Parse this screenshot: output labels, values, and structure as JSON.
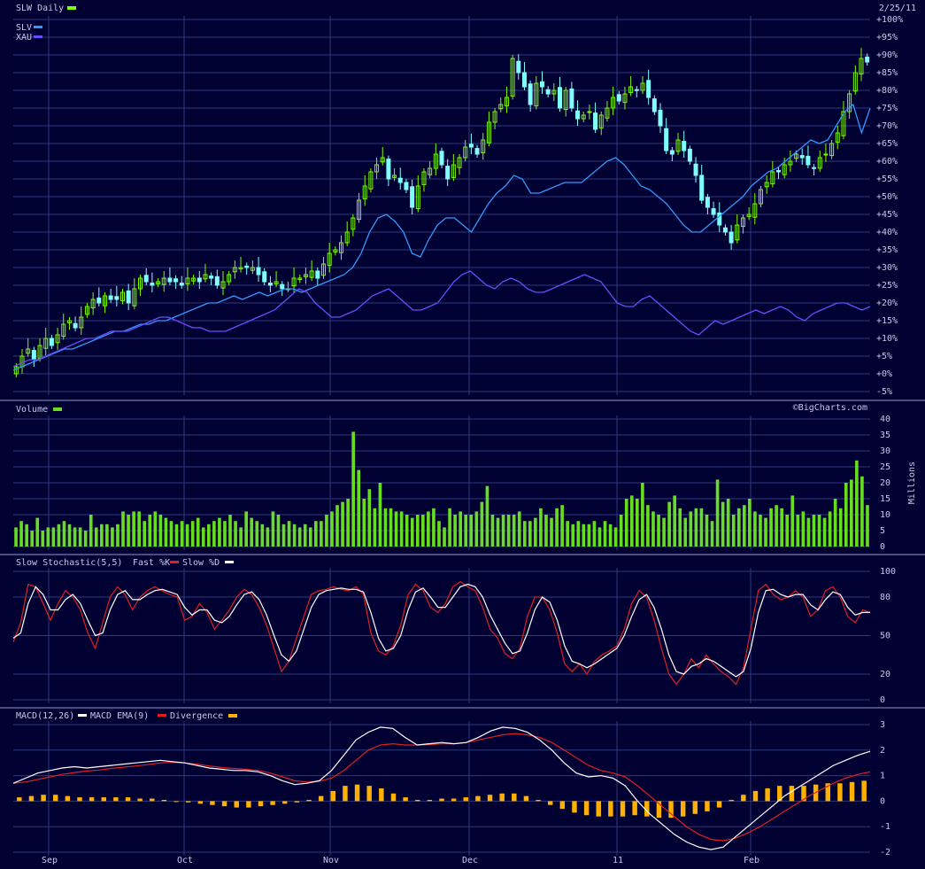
{
  "header": {
    "date": "2/25/11",
    "watermark": "©BigCharts.com"
  },
  "colors": {
    "background": "#000033",
    "grid": "#2e3a7a",
    "up_candle": "#7cfc00",
    "down_candle": "#80ffff",
    "slv": "#3399ff",
    "xau": "#6a4cff",
    "volume": "#66dd22",
    "fast_k": "#e02020",
    "slow_d": "#ffffff",
    "macd": "#ffffff",
    "macd_ema": "#e02020",
    "divergence": "#ffb000"
  },
  "chart_data": [
    {
      "panel": "price",
      "type": "candlestick",
      "legend": [
        {
          "name": "SLW Daily",
          "color": "#7cfc00"
        },
        {
          "name": "SLV",
          "color": "#3399ff"
        },
        {
          "name": "XAU",
          "color": "#6a4cff"
        }
      ],
      "y_unit": "percent",
      "ylim": [
        -5,
        100
      ],
      "y_ticks": [
        "+100%",
        "+95%",
        "+90%",
        "+85%",
        "+80%",
        "+75%",
        "+70%",
        "+65%",
        "+60%",
        "+55%",
        "+50%",
        "+45%",
        "+40%",
        "+35%",
        "+30%",
        "+25%",
        "+20%",
        "+15%",
        "+10%",
        "+5%",
        "+0%",
        "-5%"
      ],
      "x_ticks": [
        "Sep",
        "Oct",
        "Nov",
        "Dec",
        "11",
        "Feb"
      ],
      "slw_close_pct": [
        2,
        5,
        7,
        4,
        8,
        10,
        8,
        11,
        14,
        15,
        13,
        16,
        19,
        21,
        20,
        22,
        21,
        21,
        23,
        20,
        24,
        27,
        26,
        25,
        26,
        27,
        26,
        26,
        25,
        27,
        27,
        26,
        28,
        27,
        25,
        26,
        28,
        30,
        30,
        30,
        30,
        28,
        26,
        25,
        26,
        24,
        24,
        27,
        27,
        28,
        29,
        27,
        31,
        34,
        35,
        37,
        40,
        44,
        49,
        53,
        57,
        59,
        61,
        55,
        56,
        54,
        52,
        47,
        53,
        57,
        58,
        62,
        59,
        55,
        59,
        61,
        64,
        64,
        62,
        66,
        71,
        74,
        76,
        78,
        89,
        85,
        81,
        76,
        82,
        81,
        79,
        80,
        75,
        80,
        75,
        72,
        73,
        74,
        69,
        73,
        75,
        78,
        77,
        79,
        81,
        80,
        82,
        78,
        74,
        70,
        63,
        62,
        66,
        63,
        60,
        56,
        49,
        47,
        45,
        42,
        40,
        37,
        42,
        44,
        45,
        48,
        52,
        54,
        57,
        57,
        59,
        60,
        62,
        61,
        59,
        58,
        61,
        62,
        65,
        68,
        74,
        79,
        85,
        89,
        88
      ],
      "slv_pct": [
        1,
        2,
        3,
        4,
        5,
        6,
        7,
        7,
        8,
        9,
        10,
        11,
        12,
        12,
        13,
        14,
        14,
        15,
        15,
        16,
        17,
        18,
        19,
        20,
        20,
        21,
        22,
        21,
        22,
        23,
        22,
        23,
        24,
        24,
        23,
        24,
        25,
        26,
        27,
        28,
        30,
        34,
        40,
        44,
        45,
        43,
        40,
        34,
        33,
        38,
        42,
        44,
        44,
        42,
        40,
        44,
        48,
        51,
        53,
        56,
        55,
        51,
        51,
        52,
        53,
        54,
        54,
        54,
        56,
        58,
        60,
        61,
        59,
        56,
        53,
        52,
        50,
        48,
        45,
        42,
        40,
        40,
        42,
        44,
        46,
        48,
        50,
        53,
        55,
        57,
        58,
        60,
        62,
        64,
        66,
        65,
        66,
        70,
        74,
        76,
        68,
        75
      ],
      "xau_pct": [
        2,
        3,
        4,
        4,
        5,
        6,
        7,
        8,
        9,
        10,
        10,
        11,
        12,
        12,
        12,
        13,
        14,
        15,
        16,
        16,
        15,
        14,
        13,
        13,
        12,
        12,
        12,
        13,
        14,
        15,
        16,
        17,
        18,
        20,
        22,
        24,
        23,
        20,
        18,
        16,
        16,
        17,
        18,
        20,
        22,
        23,
        24,
        22,
        20,
        18,
        18,
        19,
        20,
        23,
        26,
        28,
        29,
        27,
        25,
        24,
        26,
        27,
        26,
        24,
        23,
        23,
        24,
        25,
        26,
        27,
        28,
        27,
        26,
        23,
        20,
        19,
        19,
        21,
        22,
        20,
        18,
        16,
        14,
        12,
        11,
        13,
        15,
        14,
        15,
        16,
        17,
        18,
        17,
        18,
        19,
        18,
        16,
        15,
        17,
        18,
        19,
        20,
        20,
        19,
        18,
        19
      ],
      "slv_label": "SLV",
      "xau_label": "XAU"
    },
    {
      "panel": "volume",
      "type": "bar",
      "legend": [
        {
          "name": "Volume",
          "color": "#66dd22"
        }
      ],
      "ylabel": "Millions",
      "ylim": [
        0,
        40
      ],
      "y_ticks": [
        "40",
        "35",
        "30",
        "25",
        "20",
        "15",
        "10",
        "5",
        "0"
      ],
      "values": [
        6,
        8,
        7,
        5,
        9,
        5,
        6,
        6,
        7,
        8,
        7,
        6,
        6,
        5,
        10,
        6,
        7,
        7,
        6,
        7,
        11,
        10,
        11,
        11,
        8,
        10,
        11,
        10,
        9,
        8,
        7,
        8,
        7,
        8,
        9,
        6,
        7,
        8,
        9,
        8,
        10,
        8,
        6,
        11,
        9,
        8,
        7,
        6,
        11,
        10,
        7,
        8,
        7,
        6,
        7,
        6,
        8,
        8,
        10,
        11,
        13,
        14,
        15,
        36,
        24,
        15,
        18,
        12,
        20,
        12,
        12,
        11,
        11,
        10,
        9,
        10,
        10,
        11,
        12,
        8,
        6,
        12,
        10,
        11,
        10,
        10,
        11,
        14,
        19,
        10,
        9,
        10,
        10,
        10,
        11,
        8,
        8,
        9,
        12,
        10,
        9,
        12,
        13,
        8,
        7,
        8,
        7,
        7,
        8,
        6,
        8,
        7,
        6,
        10,
        15,
        16,
        15,
        20,
        13,
        11,
        10,
        9,
        14,
        16,
        12,
        9,
        11,
        12,
        12,
        10,
        8,
        21,
        14,
        15,
        10,
        12,
        13,
        15,
        11,
        10,
        9,
        12,
        13,
        12,
        10,
        16,
        10,
        11,
        9,
        10,
        10,
        9,
        11,
        15,
        12,
        20,
        21,
        27,
        22,
        13
      ]
    },
    {
      "panel": "stochastic",
      "type": "line",
      "legend": [
        {
          "name": "Slow Stochastic(5,5)",
          "color": ""
        },
        {
          "name": "Fast %K",
          "color": "#e02020"
        },
        {
          "name": "Slow %D",
          "color": "#ffffff"
        }
      ],
      "ylim": [
        0,
        100
      ],
      "y_ticks": [
        "100",
        "80",
        "50",
        "20",
        "0"
      ],
      "fast_k": [
        45,
        60,
        90,
        88,
        75,
        62,
        75,
        85,
        80,
        70,
        52,
        40,
        60,
        80,
        88,
        82,
        70,
        80,
        85,
        88,
        85,
        82,
        80,
        62,
        65,
        75,
        68,
        55,
        62,
        70,
        80,
        86,
        82,
        72,
        58,
        40,
        22,
        30,
        48,
        65,
        82,
        85,
        86,
        88,
        86,
        85,
        88,
        82,
        52,
        38,
        35,
        42,
        58,
        82,
        90,
        85,
        72,
        68,
        75,
        88,
        92,
        88,
        85,
        72,
        55,
        48,
        36,
        32,
        40,
        65,
        80,
        80,
        70,
        52,
        28,
        22,
        28,
        20,
        30,
        35,
        38,
        42,
        55,
        75,
        85,
        80,
        62,
        40,
        20,
        12,
        20,
        32,
        25,
        35,
        28,
        22,
        18,
        12,
        25,
        55,
        85,
        90,
        82,
        78,
        80,
        85,
        80,
        65,
        70,
        85,
        88,
        80,
        65,
        60,
        70,
        68
      ],
      "slow_d": [
        48,
        52,
        75,
        88,
        82,
        70,
        70,
        78,
        82,
        75,
        62,
        50,
        52,
        70,
        82,
        85,
        78,
        78,
        82,
        85,
        86,
        84,
        82,
        72,
        66,
        70,
        70,
        62,
        60,
        65,
        74,
        82,
        84,
        78,
        66,
        50,
        35,
        30,
        38,
        55,
        72,
        82,
        85,
        86,
        87,
        86,
        86,
        84,
        68,
        48,
        38,
        40,
        50,
        70,
        84,
        87,
        80,
        72,
        72,
        80,
        88,
        90,
        88,
        80,
        66,
        55,
        44,
        36,
        38,
        52,
        70,
        80,
        76,
        62,
        42,
        30,
        28,
        25,
        28,
        32,
        36,
        40,
        50,
        65,
        78,
        82,
        72,
        55,
        35,
        22,
        20,
        26,
        28,
        32,
        30,
        26,
        22,
        18,
        22,
        40,
        68,
        85,
        86,
        82,
        80,
        82,
        82,
        74,
        70,
        78,
        84,
        82,
        72,
        66,
        68,
        68
      ]
    },
    {
      "panel": "macd",
      "type": "line",
      "legend": [
        {
          "name": "MACD(12,26)",
          "color": ""
        },
        {
          "name": "MACD EMA(9)",
          "color": "#ffffff"
        },
        {
          "name": "Divergence",
          "color": "#ffb000"
        }
      ],
      "ylim": [
        -2,
        3
      ],
      "y_ticks": [
        "3",
        "2",
        "1",
        "0",
        "-1",
        "-2"
      ],
      "macd": [
        0.7,
        0.9,
        1.1,
        1.2,
        1.3,
        1.35,
        1.3,
        1.35,
        1.4,
        1.45,
        1.5,
        1.55,
        1.6,
        1.55,
        1.5,
        1.4,
        1.3,
        1.25,
        1.2,
        1.2,
        1.15,
        1.0,
        0.8,
        0.65,
        0.7,
        0.8,
        1.2,
        1.8,
        2.4,
        2.7,
        2.9,
        2.85,
        2.5,
        2.2,
        2.25,
        2.3,
        2.25,
        2.3,
        2.5,
        2.75,
        2.9,
        2.85,
        2.7,
        2.4,
        2.0,
        1.5,
        1.1,
        0.95,
        1.0,
        0.9,
        0.6,
        0.0,
        -0.5,
        -0.9,
        -1.3,
        -1.6,
        -1.8,
        -1.9,
        -1.8,
        -1.4,
        -1.0,
        -0.6,
        -0.2,
        0.2,
        0.5,
        0.8,
        1.1,
        1.4,
        1.6,
        1.8,
        1.95
      ],
      "macd_ema": [
        0.7,
        0.75,
        0.85,
        0.95,
        1.05,
        1.12,
        1.18,
        1.22,
        1.28,
        1.33,
        1.38,
        1.43,
        1.5,
        1.52,
        1.5,
        1.45,
        1.38,
        1.32,
        1.28,
        1.25,
        1.2,
        1.1,
        0.95,
        0.8,
        0.75,
        0.78,
        0.9,
        1.2,
        1.6,
        2.0,
        2.2,
        2.25,
        2.2,
        2.2,
        2.22,
        2.25,
        2.25,
        2.3,
        2.4,
        2.5,
        2.6,
        2.65,
        2.6,
        2.5,
        2.3,
        2.0,
        1.7,
        1.4,
        1.2,
        1.1,
        0.95,
        0.6,
        0.2,
        -0.2,
        -0.6,
        -1.0,
        -1.3,
        -1.5,
        -1.55,
        -1.45,
        -1.25,
        -1.0,
        -0.7,
        -0.4,
        -0.1,
        0.2,
        0.45,
        0.7,
        0.9,
        1.05,
        1.15
      ],
      "divergence": [
        0.15,
        0.2,
        0.25,
        0.25,
        0.2,
        0.15,
        0.15,
        0.15,
        0.15,
        0.15,
        0.1,
        0.1,
        0.05,
        0.0,
        -0.05,
        -0.1,
        -0.15,
        -0.2,
        -0.25,
        -0.25,
        -0.2,
        -0.15,
        -0.1,
        -0.05,
        0.05,
        0.2,
        0.4,
        0.6,
        0.65,
        0.6,
        0.5,
        0.3,
        0.15,
        0.05,
        0.05,
        0.1,
        0.1,
        0.15,
        0.2,
        0.25,
        0.3,
        0.3,
        0.2,
        0.05,
        -0.15,
        -0.3,
        -0.45,
        -0.55,
        -0.6,
        -0.6,
        -0.6,
        -0.55,
        -0.6,
        -0.65,
        -0.65,
        -0.6,
        -0.5,
        -0.4,
        -0.25,
        0.05,
        0.25,
        0.4,
        0.5,
        0.6,
        0.6,
        0.6,
        0.65,
        0.7,
        0.7,
        0.75,
        0.8
      ]
    }
  ]
}
